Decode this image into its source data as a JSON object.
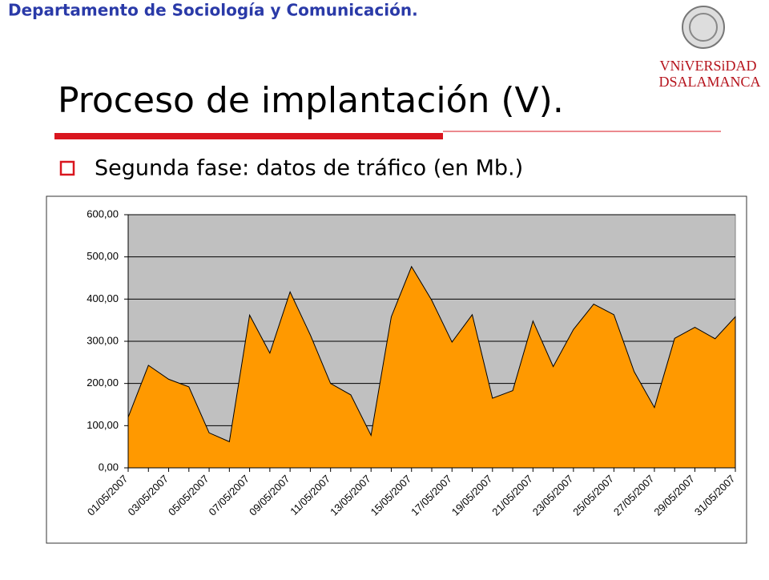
{
  "header": "Departamento de Sociología y Comunicación.",
  "logo": [
    "VNiVERSiDAD",
    "DSALAMANCA"
  ],
  "title": "Proceso de implantación (V).",
  "bullet": "Segunda fase: datos de tráfico (en Mb.)",
  "chart_data": {
    "type": "area",
    "categories": [
      "01/05/2007",
      null,
      "03/05/2007",
      null,
      "05/05/2007",
      null,
      "07/05/2007",
      null,
      "09/05/2007",
      null,
      "11/05/2007",
      null,
      "13/05/2007",
      null,
      "15/05/2007",
      null,
      "17/05/2007",
      null,
      "19/05/2007",
      null,
      "21/05/2007",
      null,
      "23/05/2007",
      null,
      "25/05/2007",
      null,
      "27/05/2007",
      null,
      "29/05/2007",
      null,
      "31/05/2007"
    ],
    "values": [
      120,
      243,
      210,
      192,
      83,
      62,
      362,
      272,
      417,
      315,
      200,
      173,
      77,
      358,
      477,
      397,
      298,
      363,
      165,
      183,
      348,
      240,
      328,
      388,
      363,
      228,
      143,
      307,
      333,
      306,
      358
    ],
    "color": "#ff9900",
    "ylim": [
      0,
      600
    ],
    "yticks": [
      {
        "value": 0,
        "label": "0,00"
      },
      {
        "value": 100,
        "label": "100,00"
      },
      {
        "value": 200,
        "label": "200,00"
      },
      {
        "value": 300,
        "label": "300,00"
      },
      {
        "value": 400,
        "label": "400,00"
      },
      {
        "value": 500,
        "label": "500,00"
      },
      {
        "value": 600,
        "label": "600,00"
      }
    ],
    "grid": true
  }
}
